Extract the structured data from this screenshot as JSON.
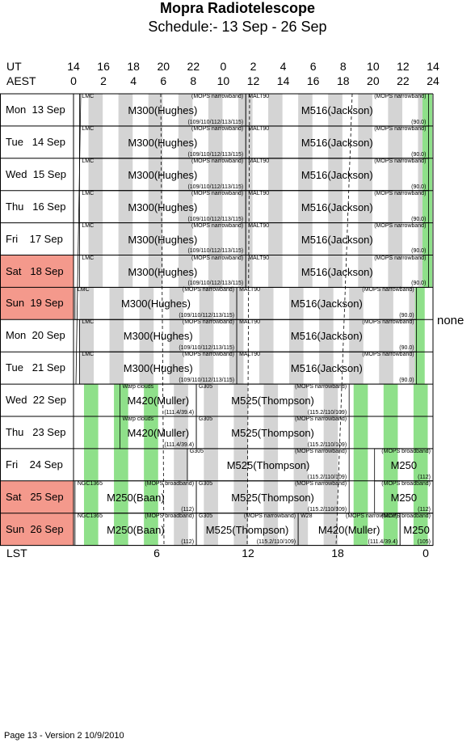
{
  "header": {
    "title": "Mopra Radiotelescope",
    "subtitle": "Schedule:- 13 Sep - 26 Sep"
  },
  "axes": {
    "ut_label": "UT",
    "aest_label": "AEST",
    "lst_label": "LST",
    "ut_ticks": [
      "14",
      "16",
      "18",
      "20",
      "22",
      "0",
      "2",
      "4",
      "6",
      "8",
      "10",
      "12",
      "14"
    ],
    "aest_ticks": [
      "0",
      "2",
      "4",
      "6",
      "8",
      "10",
      "12",
      "14",
      "16",
      "18",
      "20",
      "22",
      "24"
    ],
    "lst_ticks": [
      "6",
      "12",
      "18",
      "0"
    ]
  },
  "days": [
    {
      "label": "Mon  13 Sep",
      "weekend": false
    },
    {
      "label": "Tue   14 Sep",
      "weekend": false
    },
    {
      "label": "Wed  15 Sep",
      "weekend": false
    },
    {
      "label": "Thu   16 Sep",
      "weekend": false
    },
    {
      "label": "Fri    17 Sep",
      "weekend": false
    },
    {
      "label": "Sat   18 Sep",
      "weekend": true
    },
    {
      "label": "Sun  19 Sep",
      "weekend": true
    },
    {
      "label": "Mon  20 Sep",
      "weekend": false
    },
    {
      "label": "Tue   21 Sep",
      "weekend": false
    },
    {
      "label": "Wed  22 Sep",
      "weekend": false
    },
    {
      "label": "Thu   23 Sep",
      "weekend": false
    },
    {
      "label": "Fri    24 Sep",
      "weekend": false
    },
    {
      "label": "Sat   25 Sep",
      "weekend": true
    },
    {
      "label": "Sun  26 Sep",
      "weekend": true
    }
  ],
  "blocks": [
    {
      "row": 0,
      "start": 0.4,
      "end": 11.5,
      "main": "M300(Hughes)",
      "tl": "LMC",
      "tr": "(MOPS narrowband)",
      "br": "(109/110/112/113/115)"
    },
    {
      "row": 0,
      "start": 11.5,
      "end": 23.7,
      "main": "M516(Jackson)",
      "tl": "MALT90",
      "tr": "(MOPS narrowband)",
      "br": "(90.0)"
    },
    {
      "row": 1,
      "start": 0.4,
      "end": 11.5,
      "main": "M300(Hughes)",
      "tl": "LMC",
      "tr": "(MOPS narrowband)",
      "br": "(109/110/112/113/115)"
    },
    {
      "row": 1,
      "start": 11.5,
      "end": 23.7,
      "main": "M516(Jackson)",
      "tl": "MALT90",
      "tr": "(MOPS narrowband)",
      "br": "(90.0)"
    },
    {
      "row": 2,
      "start": 0.4,
      "end": 11.5,
      "main": "M300(Hughes)",
      "tl": "LMC",
      "tr": "(MOPS narrowband)",
      "br": "(109/110/112/113/115)"
    },
    {
      "row": 2,
      "start": 11.5,
      "end": 23.7,
      "main": "M516(Jackson)",
      "tl": "MALT90",
      "tr": "(MOPS narrowband)",
      "br": "(90.0)"
    },
    {
      "row": 3,
      "start": 0.4,
      "end": 11.5,
      "main": "M300(Hughes)",
      "tl": "LMC",
      "tr": "(MOPS narrowband)",
      "br": "(109/110/112/113/115)"
    },
    {
      "row": 3,
      "start": 11.5,
      "end": 23.7,
      "main": "M516(Jackson)",
      "tl": "MALT90",
      "tr": "(MOPS narrowband)",
      "br": "(90.0)"
    },
    {
      "row": 4,
      "start": 0.4,
      "end": 11.5,
      "main": "M300(Hughes)",
      "tl": "LMC",
      "tr": "(MOPS narrowband)",
      "br": "(109/110/112/113/115)"
    },
    {
      "row": 4,
      "start": 11.5,
      "end": 23.7,
      "main": "M516(Jackson)",
      "tl": "MALT90",
      "tr": "(MOPS narrowband)",
      "br": "(90.0)"
    },
    {
      "row": 5,
      "start": 0.4,
      "end": 11.5,
      "main": "M300(Hughes)",
      "tl": "LMC",
      "tr": "(MOPS narrowband)",
      "br": "(109/110/112/113/115)"
    },
    {
      "row": 5,
      "start": 11.5,
      "end": 23.7,
      "main": "M516(Jackson)",
      "tl": "MALT90",
      "tr": "(MOPS narrowband)",
      "br": "(90.0)"
    },
    {
      "row": 6,
      "start": 0.1,
      "end": 10.9,
      "main": "M300(Hughes)",
      "tl": "LMC",
      "tr": "(MOPS narrowband)",
      "br": "(109/110/112/113/115)"
    },
    {
      "row": 6,
      "start": 10.9,
      "end": 22.9,
      "main": "M516(Jackson)",
      "tl": "MALT90",
      "tr": "(MOPS narrowband)",
      "br": "(90.0)"
    },
    {
      "row": 7,
      "start": 0.4,
      "end": 10.9,
      "main": "M300(Hughes)",
      "tl": "LMC",
      "tr": "(MOPS narrowband)",
      "br": "(109/110/112/113/115)"
    },
    {
      "row": 7,
      "start": 10.9,
      "end": 22.9,
      "main": "M516(Jackson)",
      "tl": "MALT90",
      "tr": "(MOPS narrowband)",
      "br": "(90.0)"
    },
    {
      "row": 8,
      "start": 0.4,
      "end": 10.9,
      "main": "M300(Hughes)",
      "tl": "LMC",
      "tr": "(MOPS narrowband)",
      "br": "(109/110/112/113/115)"
    },
    {
      "row": 8,
      "start": 10.9,
      "end": 22.9,
      "main": "M516(Jackson)",
      "tl": "MALT90",
      "tr": "(MOPS narrowband)",
      "br": "(90.0)"
    },
    {
      "row": 9,
      "start": 3.1,
      "end": 8.2,
      "main": "M420(Muller)",
      "tl": "Warp clouds",
      "tr": "",
      "br": "(111.4/39.4)"
    },
    {
      "row": 9,
      "start": 8.2,
      "end": 18.4,
      "main": "M525(Thompson)",
      "tl": "G305",
      "tr": "(MOPS narrowband)",
      "br": "(115.2/110/109)"
    },
    {
      "row": 10,
      "start": 3.1,
      "end": 8.2,
      "main": "M420(Muller)",
      "tl": "Warp clouds",
      "tr": "",
      "br": "(111.4/39.4)"
    },
    {
      "row": 10,
      "start": 8.2,
      "end": 18.4,
      "main": "M525(Thompson)",
      "tl": "G305",
      "tr": "(MOPS narrowband)",
      "br": "(115.2/110/109)"
    },
    {
      "row": 11,
      "start": 7.6,
      "end": 18.4,
      "main": "M525(Thompson)",
      "tl": "G305",
      "tr": "(MOPS narrowband)",
      "br": "(115.2/110/109)"
    },
    {
      "row": 11,
      "start": 20.1,
      "end": 24.0,
      "main": "M250",
      "tl": "",
      "tr": "(MOPS broadband)",
      "br": "(112)"
    },
    {
      "row": 12,
      "start": 0.1,
      "end": 8.2,
      "main": "M250(Baan)",
      "tl": "NGC1365",
      "tr": "(MOPS broadband)",
      "br": "(112)"
    },
    {
      "row": 12,
      "start": 8.2,
      "end": 18.4,
      "main": "M525(Thompson)",
      "tl": "G305",
      "tr": "(MOPS narrowband)",
      "br": "(115.2/110/109)"
    },
    {
      "row": 12,
      "start": 20.1,
      "end": 24.0,
      "main": "M250",
      "tl": "",
      "tr": "(MOPS broadband)",
      "br": "(112)"
    },
    {
      "row": 13,
      "start": 0.1,
      "end": 8.2,
      "main": "M250(Baan)",
      "tl": "NGC1365",
      "tr": "(MOPS broadband)",
      "br": "(112)"
    },
    {
      "row": 13,
      "start": 8.2,
      "end": 15.0,
      "main": "M525(Thompson)",
      "tl": "G305",
      "tr": "(MOPS narrowband)",
      "br": "(115.2/110/109)"
    },
    {
      "row": 13,
      "start": 15.0,
      "end": 21.8,
      "main": "M420(Muller)",
      "tl": "W28",
      "tr": "(MOPS narrowband)",
      "br": "(111.4/39.4)"
    },
    {
      "row": 13,
      "start": 21.8,
      "end": 24.0,
      "main": "M250",
      "tl": "",
      "tr": "(MOPS broadband)",
      "br": "(105)"
    }
  ],
  "side_note": "none",
  "footer": "Page 13 - Version 2  10/9/2010",
  "colors": {
    "weekend": "#f4998c",
    "green": "#8fe08a",
    "grey": "#d4d4d4"
  }
}
